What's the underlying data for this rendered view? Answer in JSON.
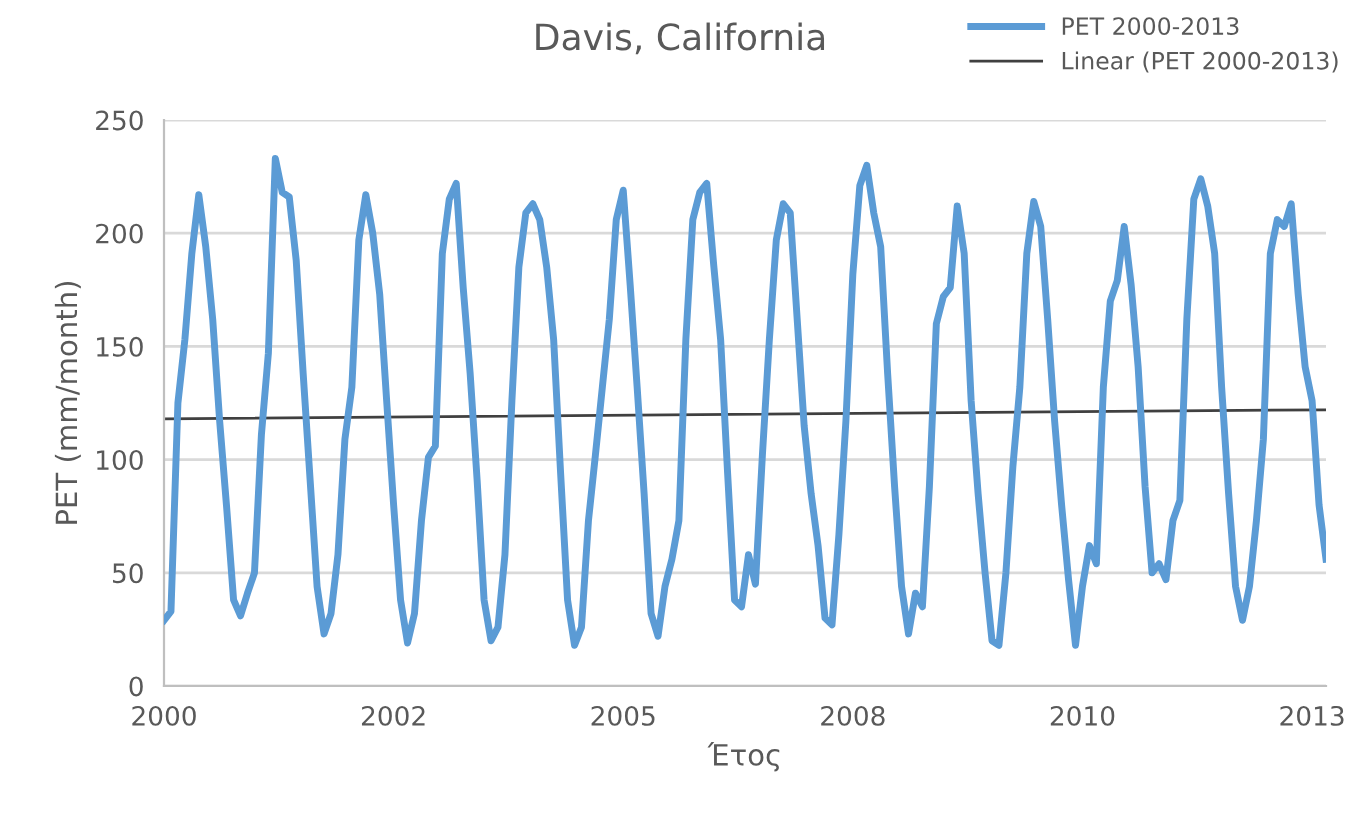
{
  "chart_data": {
    "type": "line",
    "title": "Davis, California",
    "xlabel": "Έτος",
    "ylabel": "PET (mm/month)",
    "categories": [
      "2000",
      null,
      null,
      null,
      null,
      null,
      null,
      null,
      null,
      null,
      null,
      null,
      null,
      null,
      null,
      null,
      null,
      null,
      null,
      null,
      null,
      null,
      null,
      null,
      null,
      null,
      null,
      null,
      null,
      null,
      null,
      null,
      null,
      "2002",
      null,
      null,
      null,
      null,
      null,
      null,
      null,
      null,
      null,
      null,
      null,
      null,
      null,
      null,
      null,
      null,
      null,
      null,
      null,
      null,
      null,
      null,
      null,
      null,
      null,
      null,
      null,
      null,
      null,
      null,
      null,
      null,
      "2005",
      null,
      null,
      null,
      null,
      null,
      null,
      null,
      null,
      null,
      null,
      null,
      null,
      null,
      null,
      null,
      null,
      null,
      null,
      null,
      null,
      null,
      null,
      null,
      null,
      null,
      null,
      null,
      null,
      null,
      null,
      null,
      null,
      "2008",
      null,
      null,
      null,
      null,
      null,
      null,
      null,
      null,
      null,
      null,
      null,
      null,
      null,
      null,
      null,
      null,
      null,
      null,
      null,
      null,
      null,
      null,
      null,
      null,
      null,
      null,
      null,
      null,
      null,
      null,
      null,
      null,
      "2010",
      null,
      null,
      null,
      null,
      null,
      null,
      null,
      null,
      null,
      null,
      null,
      null,
      null,
      null,
      null,
      null,
      null,
      null,
      null,
      null,
      null,
      null,
      null,
      null,
      null,
      null,
      null,
      null,
      null,
      null,
      null,
      null,
      "2013",
      null,
      null
    ],
    "ylim": [
      0,
      250
    ],
    "yticks": [
      0,
      50,
      100,
      150,
      200,
      250
    ],
    "grid": "y",
    "legend": "top right",
    "marker": "none",
    "line_style": "solid",
    "series": [
      {
        "name": "PET 2000-2013",
        "color": "#5b9bd5",
        "values": [
          29,
          33,
          125,
          153,
          191,
          217,
          194,
          162,
          117,
          79,
          38,
          31,
          41,
          50,
          111,
          147,
          233,
          218,
          216,
          188,
          138,
          91,
          44,
          23,
          32,
          58,
          109,
          132,
          197,
          217,
          200,
          173,
          126,
          80,
          38,
          19,
          32,
          73,
          101,
          106,
          191,
          215,
          222,
          176,
          138,
          91,
          38,
          20,
          26,
          58,
          126,
          185,
          209,
          213,
          206,
          185,
          153,
          94,
          38,
          18,
          26,
          73,
          102,
          132,
          162,
          206,
          219,
          177,
          132,
          85,
          32,
          22,
          44,
          56,
          73,
          153,
          206,
          218,
          222,
          186,
          153,
          94,
          38,
          35,
          58,
          45,
          102,
          153,
          197,
          213,
          209,
          162,
          115,
          85,
          62,
          30,
          27,
          67,
          117,
          182,
          221,
          230,
          209,
          194,
          138,
          88,
          44,
          23,
          41,
          35,
          88,
          160,
          172,
          176,
          212,
          191,
          126,
          85,
          50,
          20,
          18,
          50,
          97,
          132,
          191,
          214,
          203,
          162,
          117,
          80,
          47,
          18,
          44,
          62,
          54,
          132,
          170,
          179,
          203,
          177,
          141,
          88,
          50,
          54,
          47,
          73,
          82,
          162,
          215,
          224,
          212,
          191,
          132,
          85,
          44,
          29,
          44,
          73,
          109,
          191,
          206,
          203,
          213,
          173,
          141,
          126,
          80,
          56
        ]
      },
      {
        "name": "Linear (PET 2000-2013)",
        "color": "#404040",
        "values": [
          118,
          null,
          null,
          null,
          null,
          null,
          null,
          null,
          null,
          null,
          null,
          null,
          null,
          null,
          null,
          null,
          null,
          null,
          null,
          null,
          null,
          null,
          null,
          null,
          null,
          null,
          null,
          null,
          null,
          null,
          null,
          null,
          null,
          null,
          null,
          null,
          null,
          null,
          null,
          null,
          null,
          null,
          null,
          null,
          null,
          null,
          null,
          null,
          null,
          null,
          null,
          null,
          null,
          null,
          null,
          null,
          null,
          null,
          null,
          null,
          null,
          null,
          null,
          null,
          null,
          null,
          null,
          null,
          null,
          null,
          null,
          null,
          null,
          null,
          null,
          null,
          null,
          null,
          null,
          null,
          null,
          null,
          null,
          null,
          null,
          null,
          null,
          null,
          null,
          null,
          null,
          null,
          null,
          null,
          null,
          null,
          null,
          null,
          null,
          null,
          null,
          null,
          null,
          null,
          null,
          null,
          null,
          null,
          null,
          null,
          null,
          null,
          null,
          null,
          null,
          null,
          null,
          null,
          null,
          null,
          null,
          null,
          null,
          null,
          null,
          null,
          null,
          null,
          null,
          null,
          null,
          null,
          null,
          null,
          null,
          null,
          null,
          null,
          null,
          null,
          null,
          null,
          null,
          null,
          null,
          null,
          null,
          null,
          null,
          null,
          null,
          null,
          null,
          null,
          null,
          null,
          null,
          null,
          null,
          null,
          null,
          null,
          null,
          null,
          null,
          null,
          null,
          122
        ]
      }
    ]
  }
}
